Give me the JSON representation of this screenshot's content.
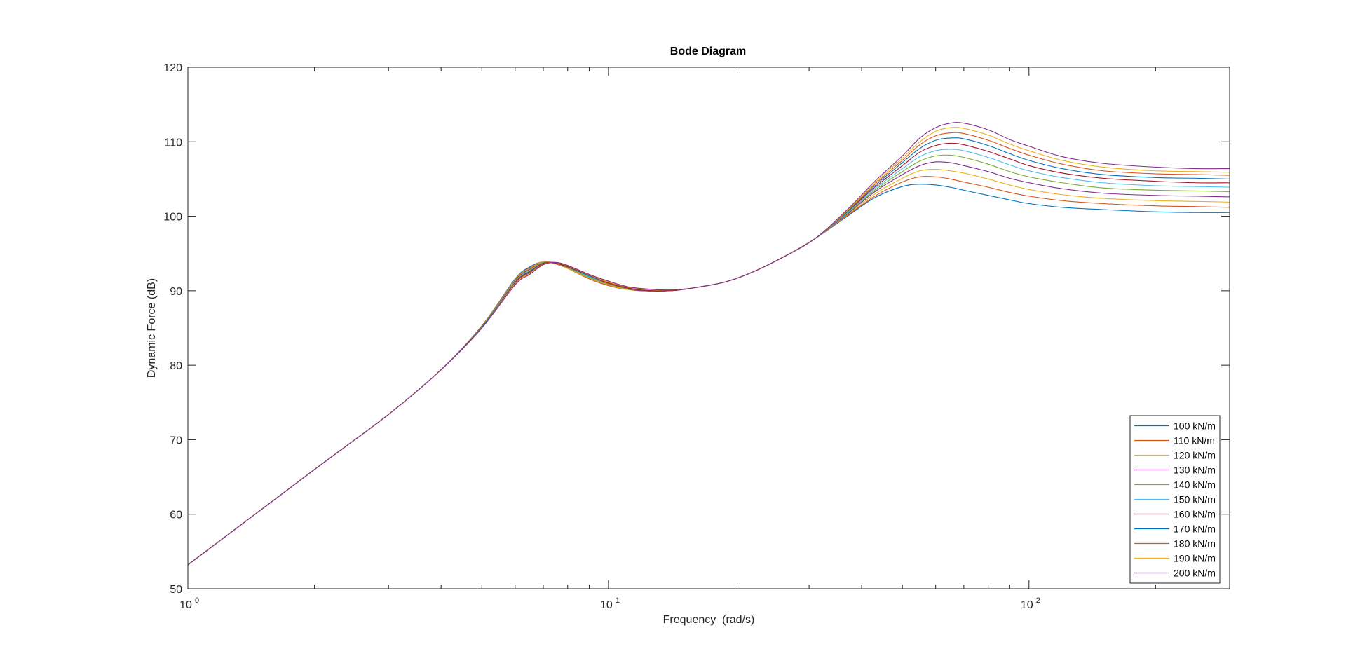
{
  "chart_data": {
    "type": "line",
    "title": "Bode Diagram",
    "xlabel": "Frequency  (rad/s)",
    "ylabel": "Dynamic Force (dB)",
    "xscale": "log",
    "xlim": [
      1,
      300
    ],
    "ylim": [
      50,
      120
    ],
    "xticks": [
      {
        "value": 1,
        "base": "10",
        "exp": "0"
      },
      {
        "value": 10,
        "base": "10",
        "exp": "1"
      },
      {
        "value": 100,
        "base": "10",
        "exp": "2"
      }
    ],
    "yticks": [
      "50",
      "60",
      "70",
      "80",
      "90",
      "100",
      "110",
      "120"
    ],
    "grid": false,
    "legend_position": "bottom-right",
    "x": [
      1,
      2,
      3,
      4,
      5,
      6,
      6.5,
      7,
      7.5,
      8,
      9,
      10,
      11,
      12,
      14,
      16,
      19,
      22,
      26,
      31,
      37,
      43,
      50,
      55,
      60,
      65,
      70,
      80,
      90,
      100,
      120,
      150,
      200,
      250,
      300
    ],
    "series": [
      {
        "name": "100 kN/m",
        "color": "#0072BD",
        "values": [
          53.2,
          66.0,
          73.4,
          79.4,
          85.3,
          91.6,
          93.2,
          93.9,
          93.6,
          93.0,
          91.6,
          90.7,
          90.2,
          90.0,
          90.0,
          90.4,
          91.2,
          92.5,
          94.5,
          97.0,
          100.0,
          102.5,
          104.0,
          104.3,
          104.2,
          103.9,
          103.5,
          102.8,
          102.2,
          101.7,
          101.2,
          100.9,
          100.6,
          100.5,
          100.5
        ]
      },
      {
        "name": "110 kN/m",
        "color": "#D95319",
        "values": [
          53.2,
          66.0,
          73.4,
          79.4,
          85.3,
          91.5,
          93.1,
          93.9,
          93.6,
          93.0,
          91.6,
          90.7,
          90.2,
          90.0,
          90.0,
          90.4,
          91.2,
          92.5,
          94.5,
          97.0,
          100.1,
          102.7,
          104.6,
          105.3,
          105.3,
          105.0,
          104.6,
          103.9,
          103.2,
          102.7,
          102.1,
          101.7,
          101.4,
          101.3,
          101.2
        ]
      },
      {
        "name": "120 kN/m",
        "color": "#EDB120",
        "values": [
          53.2,
          66.0,
          73.4,
          79.4,
          85.2,
          91.5,
          93.0,
          93.9,
          93.7,
          93.0,
          91.7,
          90.8,
          90.2,
          90.0,
          90.0,
          90.4,
          91.2,
          92.5,
          94.5,
          97.0,
          100.2,
          103.0,
          105.1,
          106.1,
          106.3,
          106.1,
          105.8,
          105.0,
          104.2,
          103.6,
          102.9,
          102.4,
          102.1,
          102.0,
          101.9
        ]
      },
      {
        "name": "130 kN/m",
        "color": "#7E2F8E",
        "values": [
          53.2,
          66.0,
          73.4,
          79.4,
          85.2,
          91.4,
          92.9,
          93.8,
          93.7,
          93.1,
          91.8,
          90.9,
          90.3,
          90.0,
          90.0,
          90.4,
          91.2,
          92.5,
          94.5,
          97.0,
          100.3,
          103.3,
          105.6,
          106.8,
          107.3,
          107.2,
          106.8,
          106.0,
          105.1,
          104.5,
          103.7,
          103.1,
          102.8,
          102.7,
          102.6
        ]
      },
      {
        "name": "140 kN/m",
        "color": "#77AC30",
        "values": [
          53.2,
          66.0,
          73.4,
          79.4,
          85.2,
          91.3,
          92.8,
          93.8,
          93.7,
          93.1,
          91.8,
          90.9,
          90.3,
          90.1,
          90.0,
          90.4,
          91.2,
          92.5,
          94.5,
          97.0,
          100.4,
          103.5,
          106.0,
          107.4,
          108.1,
          108.2,
          107.9,
          107.0,
          106.0,
          105.3,
          104.5,
          103.8,
          103.5,
          103.4,
          103.3
        ]
      },
      {
        "name": "150 kN/m",
        "color": "#4DBEEE",
        "values": [
          53.2,
          66.0,
          73.4,
          79.4,
          85.1,
          91.2,
          92.7,
          93.7,
          93.7,
          93.2,
          91.9,
          91.0,
          90.4,
          90.1,
          90.0,
          90.4,
          91.2,
          92.5,
          94.5,
          97.0,
          100.5,
          103.7,
          106.4,
          108.0,
          108.8,
          109.0,
          108.8,
          107.9,
          106.9,
          106.1,
          105.2,
          104.5,
          104.1,
          104.0,
          103.9
        ]
      },
      {
        "name": "160 kN/m",
        "color": "#A2142F",
        "values": [
          53.2,
          66.0,
          73.4,
          79.4,
          85.1,
          91.1,
          92.6,
          93.7,
          93.7,
          93.2,
          92.0,
          91.0,
          90.4,
          90.1,
          90.0,
          90.4,
          91.2,
          92.5,
          94.5,
          97.0,
          100.6,
          103.9,
          106.8,
          108.6,
          109.5,
          109.8,
          109.6,
          108.7,
          107.7,
          106.8,
          105.8,
          105.1,
          104.7,
          104.5,
          104.5
        ]
      },
      {
        "name": "170 kN/m",
        "color": "#0072BD",
        "values": [
          53.2,
          66.0,
          73.4,
          79.4,
          85.1,
          91.0,
          92.5,
          93.6,
          93.8,
          93.3,
          92.0,
          91.1,
          90.5,
          90.2,
          90.1,
          90.4,
          91.2,
          92.5,
          94.5,
          97.0,
          100.6,
          104.1,
          107.2,
          109.1,
          110.2,
          110.5,
          110.4,
          109.5,
          108.4,
          107.5,
          106.4,
          105.6,
          105.2,
          105.1,
          105.0
        ]
      },
      {
        "name": "180 kN/m",
        "color": "#D95319",
        "values": [
          53.2,
          66.0,
          73.4,
          79.4,
          85.0,
          91.0,
          92.4,
          93.6,
          93.8,
          93.3,
          92.1,
          91.1,
          90.5,
          90.2,
          90.1,
          90.4,
          91.2,
          92.5,
          94.5,
          97.0,
          100.7,
          104.3,
          107.5,
          109.6,
          110.8,
          111.2,
          111.1,
          110.2,
          109.1,
          108.2,
          107.0,
          106.1,
          105.7,
          105.6,
          105.5
        ]
      },
      {
        "name": "190 kN/m",
        "color": "#EDB120",
        "values": [
          53.2,
          66.0,
          73.4,
          79.4,
          85.0,
          90.9,
          92.3,
          93.5,
          93.8,
          93.4,
          92.2,
          91.2,
          90.6,
          90.2,
          90.1,
          90.4,
          91.2,
          92.5,
          94.5,
          97.0,
          100.8,
          104.5,
          107.8,
          110.0,
          111.4,
          111.9,
          111.8,
          110.9,
          109.7,
          108.8,
          107.5,
          106.6,
          106.1,
          106.0,
          105.9
        ]
      },
      {
        "name": "200 kN/m",
        "color": "#7E2F8E",
        "values": [
          53.2,
          66.0,
          73.4,
          79.4,
          85.0,
          90.8,
          92.2,
          93.5,
          93.8,
          93.4,
          92.2,
          91.3,
          90.6,
          90.3,
          90.1,
          90.4,
          91.2,
          92.5,
          94.5,
          97.0,
          100.9,
          104.7,
          108.1,
          110.5,
          111.9,
          112.5,
          112.5,
          111.6,
          110.3,
          109.4,
          108.0,
          107.1,
          106.6,
          106.4,
          106.4
        ]
      }
    ]
  }
}
